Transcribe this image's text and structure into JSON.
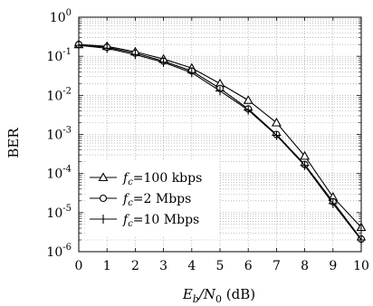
{
  "chart_data": {
    "type": "line",
    "title": "",
    "xlabel": "E_b/N_0 (dB)",
    "xlabel_parts": {
      "main": "E",
      "sub1": "b",
      "slash": "/N",
      "sub2": "0",
      "unit": " (dB)"
    },
    "ylabel": "BER",
    "xlim": [
      0,
      10
    ],
    "ylim": [
      1e-06,
      1
    ],
    "yscale": "log",
    "grid": "dotted",
    "legend_position": "bottom-left",
    "x": [
      0,
      1,
      2,
      3,
      4,
      5,
      6,
      7,
      8,
      9,
      10
    ],
    "x_tick_labels": [
      "0",
      "1",
      "2",
      "3",
      "4",
      "5",
      "6",
      "7",
      "8",
      "9",
      "10"
    ],
    "y_ticks": [
      {
        "base": "10",
        "exp": "-6"
      },
      {
        "base": "10",
        "exp": "-5"
      },
      {
        "base": "10",
        "exp": "-4"
      },
      {
        "base": "10",
        "exp": "-3"
      },
      {
        "base": "10",
        "exp": "-2"
      },
      {
        "base": "10",
        "exp": "-1"
      },
      {
        "base": "10",
        "exp": "0"
      }
    ],
    "series": [
      {
        "name": "f_c=100 kbps",
        "sub": "c",
        "rest": "=100 kbps",
        "marker": "triangle",
        "values": [
          0.2,
          0.18,
          0.13,
          0.085,
          0.05,
          0.02,
          0.0075,
          0.002,
          0.00028,
          2.5e-05,
          4.2e-06
        ]
      },
      {
        "name": "f_c=2 Mbps",
        "sub": "c",
        "rest": "=2 Mbps",
        "marker": "circle",
        "values": [
          0.2,
          0.17,
          0.12,
          0.075,
          0.042,
          0.015,
          0.0045,
          0.001,
          0.00017,
          1.9e-05,
          2.1e-06
        ]
      },
      {
        "name": "f_c=10 Mbps",
        "sub": "c",
        "rest": "=10 Mbps",
        "marker": "plus",
        "values": [
          0.19,
          0.16,
          0.11,
          0.07,
          0.038,
          0.013,
          0.0042,
          0.00095,
          0.00016,
          1.7e-05,
          2e-06
        ]
      }
    ]
  }
}
